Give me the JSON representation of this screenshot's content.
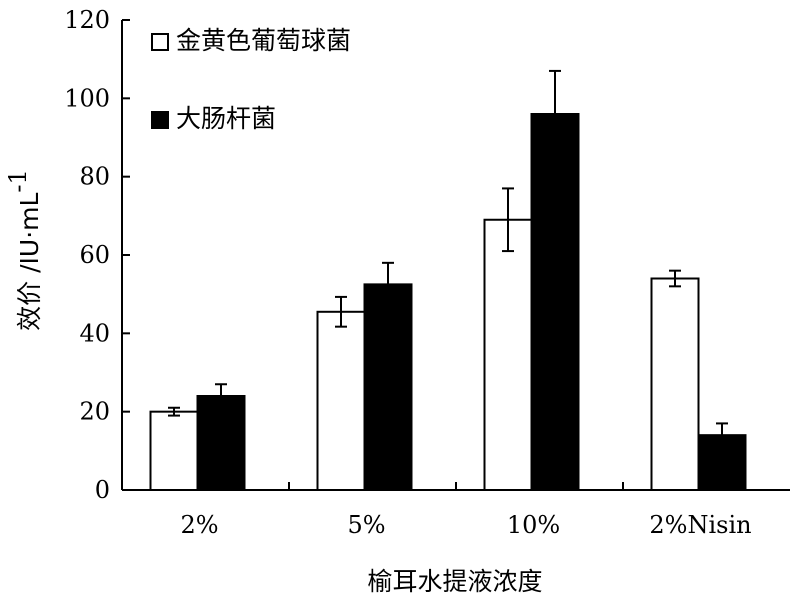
{
  "chart_data": {
    "type": "bar",
    "categories": [
      "2%",
      "5%",
      "10%",
      "2%Nisin"
    ],
    "series": [
      {
        "name": "金黄色葡萄球菌",
        "values": [
          20,
          45.5,
          69,
          54
        ],
        "errors": [
          1,
          3.8,
          8,
          2
        ],
        "color": "#ffffff"
      },
      {
        "name": "大肠杆菌",
        "values": [
          24,
          52.5,
          96,
          14
        ],
        "errors": [
          3,
          5.5,
          11,
          3
        ],
        "color": "#000000"
      }
    ],
    "xlabel": "榆耳水提液浓度",
    "ylabel": "效价 /IU·mL",
    "ylabel_superscript": "-1",
    "ylim": [
      0,
      120
    ],
    "yticks": [
      0,
      20,
      40,
      60,
      80,
      100,
      120
    ],
    "legend_position": "top-left",
    "grid": false
  }
}
